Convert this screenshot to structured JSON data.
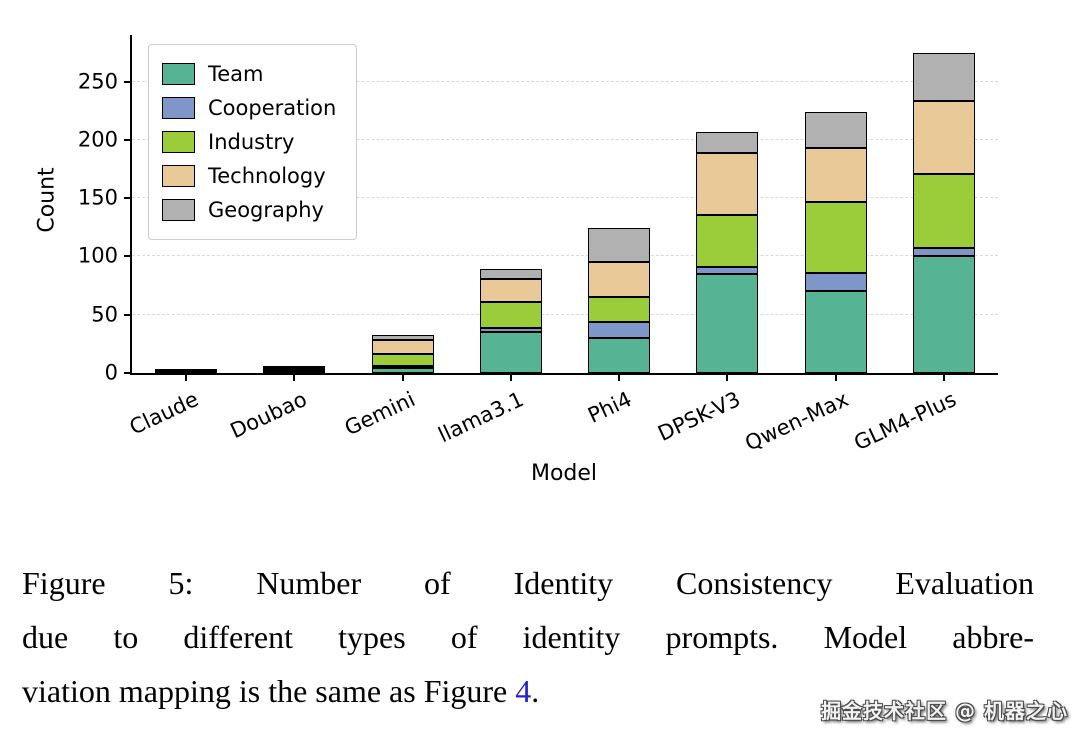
{
  "chart_data": {
    "type": "bar",
    "stacked": true,
    "title": "",
    "xlabel": "Model",
    "ylabel": "Count",
    "ylim": [
      0,
      290
    ],
    "yticks": [
      0,
      50,
      100,
      150,
      200,
      250
    ],
    "grid": true,
    "legend_position": "upper left",
    "categories": [
      "Claude",
      "Doubao",
      "Gemini",
      "llama3.1",
      "Phi4",
      "DPSK-V3",
      "Qwen-Max",
      "GLM4-Plus"
    ],
    "series": [
      {
        "name": "Team",
        "color": "#56b494",
        "values": [
          1,
          2,
          4,
          35,
          30,
          85,
          70,
          100
        ]
      },
      {
        "name": "Cooperation",
        "color": "#7e96c8",
        "values": [
          0,
          1,
          2,
          4,
          14,
          6,
          16,
          7
        ]
      },
      {
        "name": "Industry",
        "color": "#9bcd3a",
        "values": [
          1,
          1,
          10,
          22,
          21,
          45,
          61,
          64
        ]
      },
      {
        "name": "Technology",
        "color": "#e9c998",
        "values": [
          1,
          1,
          12,
          20,
          30,
          53,
          46,
          62
        ]
      },
      {
        "name": "Geography",
        "color": "#b1b1b1",
        "values": [
          0,
          0,
          5,
          8,
          29,
          18,
          31,
          42
        ]
      }
    ],
    "totals": [
      3,
      5,
      33,
      89,
      124,
      207,
      224,
      275
    ]
  },
  "caption": {
    "line1": "Figure 5: Number of Identity Consistency Evaluation",
    "line2": "due to different types of identity prompts. Model abbre-",
    "line3_before": "viation mapping is the same as Figure ",
    "link": "4",
    "line3_after": ".",
    "link_color": "#2222cc"
  },
  "watermark": "掘金技术社区 @ 机器之心"
}
